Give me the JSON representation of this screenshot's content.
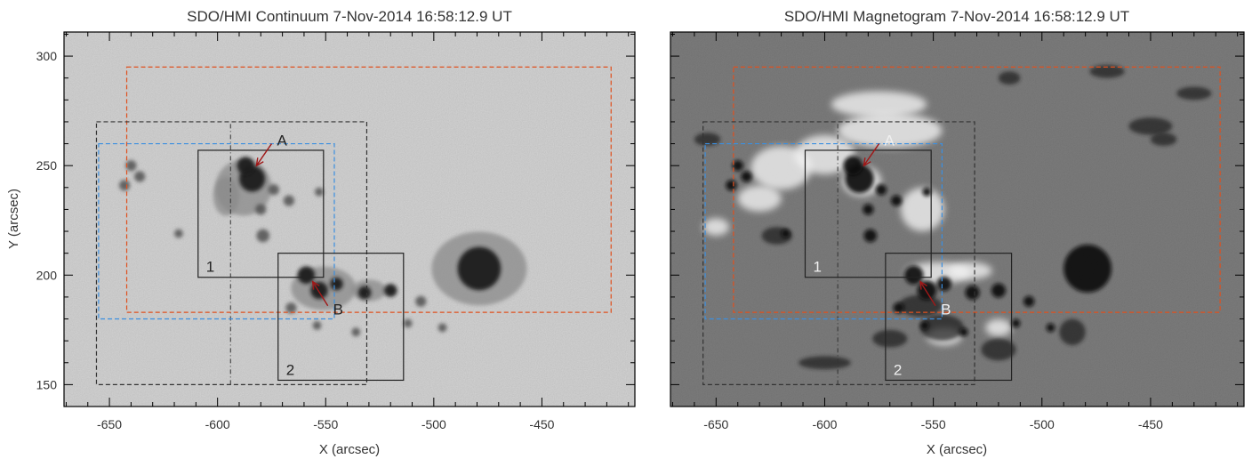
{
  "panels": [
    {
      "title": "SDO/HMI Continuum 7-Nov-2014 16:58:12.9 UT",
      "xlabel": "X (arcsec)",
      "ylabel": "Y (arcsec)",
      "kind": "continuum",
      "show_yticklabels": true
    },
    {
      "title": "SDO/HMI Magnetogram 7-Nov-2014 16:58:12.9 UT",
      "xlabel": "X (arcsec)",
      "ylabel": "",
      "kind": "magnetogram",
      "show_yticklabels": false
    }
  ],
  "axes": {
    "xlim": [
      -671,
      -407
    ],
    "ylim": [
      140,
      311
    ],
    "xticks": [
      -650,
      -600,
      -550,
      -500,
      -450
    ],
    "xtick_labels": [
      "-650",
      "-600",
      "-550",
      "-500",
      "-450"
    ],
    "yticks": [
      150,
      200,
      250,
      300
    ],
    "ytick_labels": [
      "150",
      "200",
      "250",
      "300"
    ]
  },
  "regions": [
    {
      "name": "orange-roi",
      "x": [
        -642,
        -418
      ],
      "y": [
        183,
        295
      ],
      "color": "#e0501e",
      "style": "dashed"
    },
    {
      "name": "blue-roi",
      "x": [
        -655,
        -546
      ],
      "y": [
        180,
        260
      ],
      "color": "#3b8fe0",
      "style": "dashed"
    },
    {
      "name": "black-roi",
      "x": [
        -656,
        -531
      ],
      "y": [
        150,
        270
      ],
      "color": "#333333",
      "style": "dashed"
    },
    {
      "name": "box-1",
      "x": [
        -609,
        -551
      ],
      "y": [
        199,
        257
      ],
      "color": "#222222",
      "style": "solid",
      "label": "1"
    },
    {
      "name": "box-2",
      "x": [
        -572,
        -514
      ],
      "y": [
        152,
        210
      ],
      "color": "#222222",
      "style": "solid",
      "label": "2"
    }
  ],
  "divider_x": -594,
  "arrows": [
    {
      "label": "A",
      "from": [
        -575,
        260
      ],
      "to": [
        -582,
        250
      ],
      "color": "#a01818"
    },
    {
      "label": "B",
      "from": [
        -549,
        186
      ],
      "to": [
        -556,
        197
      ],
      "color": "#a01818"
    }
  ],
  "colors": {
    "continuum_bg": "#d7d7d7",
    "magnetogram_bg": "#7f7f7f",
    "axis": "#000000",
    "label_text": "#333333"
  },
  "features": {
    "sunspots": [
      {
        "x": -479,
        "y": 203,
        "r": 10,
        "umbra": true
      },
      {
        "x": -584,
        "y": 244,
        "r": 6,
        "umbra": true
      },
      {
        "x": -587,
        "y": 250,
        "r": 4,
        "umbra": true
      },
      {
        "x": -559,
        "y": 200,
        "r": 4,
        "umbra": true
      },
      {
        "x": -553,
        "y": 193,
        "r": 4,
        "umbra": true
      },
      {
        "x": -545,
        "y": 196,
        "r": 3,
        "umbra": true
      },
      {
        "x": -532,
        "y": 192,
        "r": 3,
        "umbra": true
      },
      {
        "x": -520,
        "y": 193,
        "r": 3,
        "umbra": true
      },
      {
        "x": -506,
        "y": 188,
        "r": 2.5,
        "umbra": false
      },
      {
        "x": -640,
        "y": 250,
        "r": 2.5,
        "umbra": false
      },
      {
        "x": -636,
        "y": 245,
        "r": 2.5,
        "umbra": false
      },
      {
        "x": -643,
        "y": 241,
        "r": 2.5,
        "umbra": false
      },
      {
        "x": -574,
        "y": 239,
        "r": 2.5,
        "umbra": false
      },
      {
        "x": -567,
        "y": 234,
        "r": 2.5,
        "umbra": false
      },
      {
        "x": -580,
        "y": 230,
        "r": 2.5,
        "umbra": false
      },
      {
        "x": -579,
        "y": 218,
        "r": 3,
        "umbra": false
      },
      {
        "x": -553,
        "y": 238,
        "r": 2,
        "umbra": false
      },
      {
        "x": -618,
        "y": 219,
        "r": 2,
        "umbra": false
      },
      {
        "x": -566,
        "y": 185,
        "r": 2.5,
        "umbra": false
      },
      {
        "x": -554,
        "y": 177,
        "r": 2,
        "umbra": false
      },
      {
        "x": -512,
        "y": 178,
        "r": 2,
        "umbra": false
      },
      {
        "x": -496,
        "y": 176,
        "r": 2,
        "umbra": false
      },
      {
        "x": -536,
        "y": 174,
        "r": 2,
        "umbra": false
      }
    ],
    "penumbrae": [
      {
        "x": -479,
        "y": 203,
        "rx": 22,
        "ry": 17
      },
      {
        "x": -588,
        "y": 240,
        "rx": 13,
        "ry": 13
      },
      {
        "x": -551,
        "y": 194,
        "rx": 15,
        "ry": 10
      },
      {
        "x": -530,
        "y": 193,
        "rx": 8,
        "ry": 5
      },
      {
        "x": -596,
        "y": 236,
        "rx": 6,
        "ry": 9
      }
    ],
    "plage_positive": [
      {
        "x": -583,
        "y": 243,
        "rx": 9,
        "ry": 7
      },
      {
        "x": -548,
        "y": 201,
        "rx": 15,
        "ry": 5
      },
      {
        "x": -533,
        "y": 202,
        "rx": 10,
        "ry": 4
      },
      {
        "x": -620,
        "y": 249,
        "rx": 14,
        "ry": 10
      },
      {
        "x": -600,
        "y": 255,
        "rx": 14,
        "ry": 9
      },
      {
        "x": -570,
        "y": 266,
        "rx": 24,
        "ry": 8
      },
      {
        "x": -555,
        "y": 230,
        "rx": 10,
        "ry": 10
      },
      {
        "x": -630,
        "y": 235,
        "rx": 10,
        "ry": 6
      },
      {
        "x": -575,
        "y": 278,
        "rx": 22,
        "ry": 6
      },
      {
        "x": -545,
        "y": 172,
        "rx": 8,
        "ry": 4
      },
      {
        "x": -520,
        "y": 176,
        "rx": 6,
        "ry": 4
      },
      {
        "x": -650,
        "y": 222,
        "rx": 6,
        "ry": 4
      }
    ],
    "negative_network": [
      {
        "x": -622,
        "y": 218,
        "rx": 7,
        "ry": 4
      },
      {
        "x": -556,
        "y": 186,
        "rx": 10,
        "ry": 5
      },
      {
        "x": -546,
        "y": 176,
        "rx": 10,
        "ry": 6
      },
      {
        "x": -520,
        "y": 166,
        "rx": 8,
        "ry": 5
      },
      {
        "x": -486,
        "y": 174,
        "rx": 6,
        "ry": 6
      },
      {
        "x": -450,
        "y": 268,
        "rx": 10,
        "ry": 4
      },
      {
        "x": -430,
        "y": 283,
        "rx": 8,
        "ry": 3
      },
      {
        "x": -470,
        "y": 293,
        "rx": 8,
        "ry": 3
      },
      {
        "x": -515,
        "y": 290,
        "rx": 5,
        "ry": 3
      },
      {
        "x": -444,
        "y": 262,
        "rx": 6,
        "ry": 3
      },
      {
        "x": -654,
        "y": 262,
        "rx": 6,
        "ry": 3
      },
      {
        "x": -600,
        "y": 160,
        "rx": 12,
        "ry": 3
      },
      {
        "x": -570,
        "y": 171,
        "rx": 8,
        "ry": 4
      }
    ]
  }
}
